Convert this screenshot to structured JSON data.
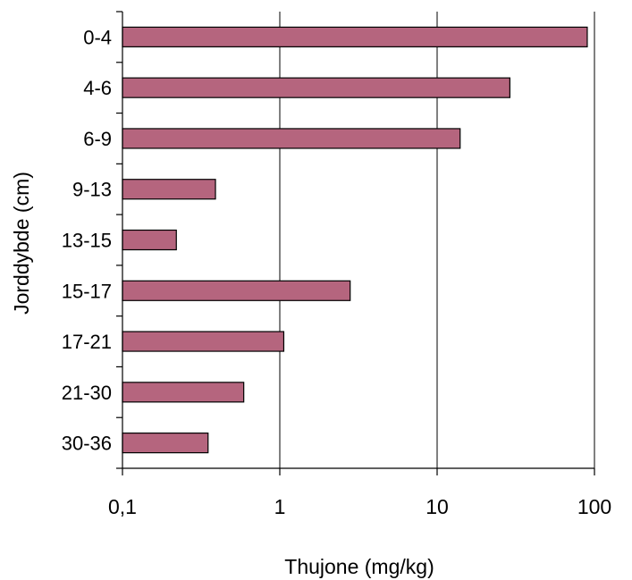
{
  "chart_data": {
    "type": "bar",
    "orientation": "horizontal",
    "title": "",
    "xlabel": "Thujone (mg/kg)",
    "ylabel": "Jorddybde (cm)",
    "x_scale": "log",
    "xlim": [
      0.1,
      100
    ],
    "x_ticks": [
      {
        "value": 0.1,
        "label": "0,1"
      },
      {
        "value": 1,
        "label": "1"
      },
      {
        "value": 10,
        "label": "10"
      },
      {
        "value": 100,
        "label": "100"
      }
    ],
    "grid": "vertical",
    "categories": [
      "0-4",
      "4-6",
      "6-9",
      "9-13",
      "13-15",
      "15-17",
      "17-21",
      "21-30",
      "30-36"
    ],
    "values": [
      90,
      29,
      14,
      0.39,
      0.22,
      2.8,
      1.06,
      0.59,
      0.35
    ],
    "bar_color": "#b5657e",
    "bar_outline_color": "#000000"
  }
}
